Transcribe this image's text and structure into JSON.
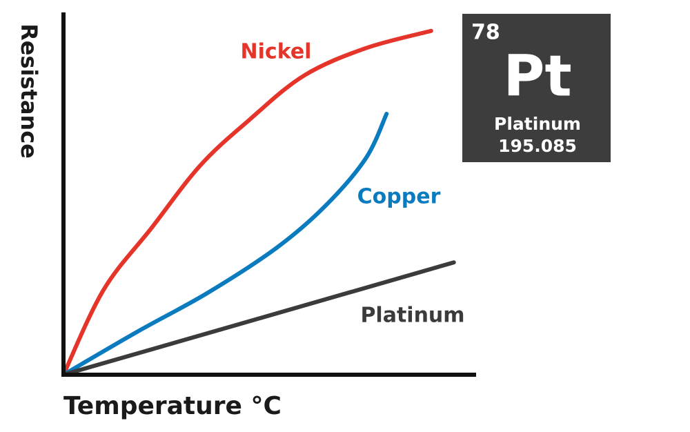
{
  "chart_data": {
    "type": "line",
    "x_label": "Temperature °C",
    "y_label": "Resistance",
    "xlim": [
      0,
      100
    ],
    "ylim": [
      0,
      100
    ],
    "series": [
      {
        "name": "Nickel",
        "color": "#e5352b",
        "x": [
          0,
          9.7,
          21.4,
          33.1,
          44.8,
          58.2,
          73.2,
          89.1
        ],
        "values": [
          0,
          23.4,
          40.6,
          57.7,
          70.1,
          82.5,
          90.1,
          94.9
        ]
      },
      {
        "name": "Copper",
        "color": "#0b7bc0",
        "x": [
          0,
          18.1,
          34.8,
          51.5,
          63.2,
          73.2,
          78.3
        ],
        "values": [
          0,
          12,
          22.5,
          34.9,
          46.3,
          59.6,
          72
        ]
      },
      {
        "name": "Platinum",
        "color": "#3b3b3b",
        "x": [
          0,
          94.6
        ],
        "values": [
          0,
          31
        ]
      }
    ]
  },
  "element": {
    "number": "78",
    "symbol": "Pt",
    "name": "Platinum",
    "mass": "195.085"
  }
}
